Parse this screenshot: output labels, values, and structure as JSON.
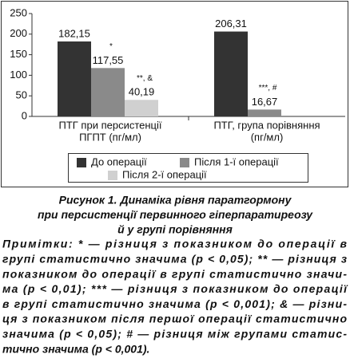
{
  "chart_data": {
    "type": "bar",
    "categories": [
      [
        "ПТГ при персистенції",
        "ПГПТ (пг/мл)"
      ],
      [
        "ПТГ, група порівняння",
        "(пг/мл)"
      ]
    ],
    "series": [
      {
        "name": "До операції",
        "color": "#333333",
        "values": [
          182.15,
          206.31
        ],
        "value_labels": [
          "182,15",
          "206,31"
        ]
      },
      {
        "name": "Після 1-ї операції",
        "color": "#8a8a8a",
        "values": [
          117.55,
          16.67
        ],
        "value_labels": [
          "117,55",
          "16,67"
        ],
        "annotations": [
          "*",
          "***, #"
        ]
      },
      {
        "name": "Після 2-ї операції",
        "color": "#d0d0d0",
        "values": [
          40.19,
          null
        ],
        "value_labels": [
          "40,19",
          null
        ],
        "annotations": [
          "**, &",
          null
        ]
      }
    ],
    "ylim": [
      0,
      250
    ],
    "yticks": [
      0,
      50,
      100,
      150,
      200,
      250
    ],
    "grid": false
  },
  "caption": [
    "Рисунок 1.  Динаміка рівня паратгормону",
    "при персистенції первинного гіперпаратиреозу",
    "й у групі порівняння"
  ],
  "notes": [
    "Примітки: * — різниця з показником до операції в",
    "групі статистично значима (р < 0,05); ** — різниця з",
    "показником до операції в групі статистично значи-",
    "ма (р < 0,01); *** — різниця з показником до операції",
    "в групі статистично значима (р < 0,001); & — різни-",
    "ця з показником після першої операції статистично",
    "значима (р < 0,05); # — різниця між групами статис-",
    "тично значима (р < 0,001)."
  ]
}
